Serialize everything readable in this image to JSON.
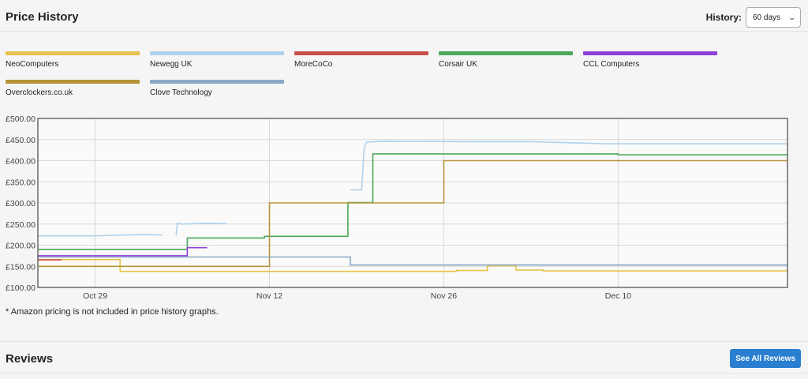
{
  "header": {
    "title": "Price History",
    "history_label": "History:",
    "history_selected": "60 days"
  },
  "note": "* Amazon pricing is not included in price history graphs.",
  "reviews": {
    "title": "Reviews",
    "button_label": "See All Reviews"
  },
  "colors": {
    "button": "#2a7fd1"
  },
  "chart_data": {
    "type": "line",
    "xlabel": "",
    "ylabel": "",
    "x_tick_labels": [
      {
        "label": "Oct 29",
        "day": 0
      },
      {
        "label": "Nov 12",
        "day": 14
      },
      {
        "label": "Nov 26",
        "day": 28
      },
      {
        "label": "Dec 10",
        "day": 42
      }
    ],
    "x_note": "x values are days relative to Oct 29",
    "xlim": [
      -4.6,
      55.6
    ],
    "y_tick_labels": [
      "£100.00",
      "£150.00",
      "£200.00",
      "£250.00",
      "£300.00",
      "£350.00",
      "£400.00",
      "£450.00",
      "£500.00"
    ],
    "ylim": [
      100,
      500
    ],
    "grid": true,
    "legend_position": "top",
    "series": [
      {
        "name": "NeoComputers",
        "color": "#e8c14a",
        "step": true,
        "points": [
          [
            -4.6,
            166
          ],
          [
            2,
            166
          ],
          [
            2,
            138
          ],
          [
            29,
            138
          ],
          [
            29,
            140
          ],
          [
            31.5,
            140
          ],
          [
            31.5,
            151
          ],
          [
            33.8,
            151
          ],
          [
            33.8,
            141
          ],
          [
            36,
            141
          ],
          [
            36,
            139
          ],
          [
            55.6,
            139
          ]
        ]
      },
      {
        "name": "Newegg UK",
        "color": "#aed2ee",
        "step": false,
        "points": [
          [
            -4.6,
            222
          ],
          [
            0,
            222
          ],
          [
            2,
            224
          ],
          [
            4,
            225
          ],
          [
            5.4,
            224
          ],
          [
            5.4,
            null
          ],
          [
            6.5,
            223
          ],
          [
            6.6,
            252
          ],
          [
            7,
            250
          ],
          [
            9,
            252
          ],
          [
            10.6,
            251
          ],
          [
            10.6,
            null
          ],
          [
            20.5,
            331
          ],
          [
            21.4,
            331
          ],
          [
            21.6,
            430
          ],
          [
            21.8,
            444
          ],
          [
            23,
            446
          ],
          [
            30,
            445
          ],
          [
            35,
            445
          ],
          [
            41,
            440
          ],
          [
            55.6,
            440
          ]
        ]
      },
      {
        "name": "MoreCoCo",
        "color": "#c9504a",
        "step": true,
        "points": [
          [
            -4.6,
            165
          ],
          [
            -2.7,
            165
          ]
        ]
      },
      {
        "name": "Corsair UK",
        "color": "#4aa85a",
        "step": true,
        "points": [
          [
            -4.6,
            190
          ],
          [
            7.4,
            190
          ],
          [
            7.4,
            217
          ],
          [
            11.5,
            217
          ],
          [
            11.5,
            217
          ],
          [
            13.6,
            217
          ],
          [
            13.6,
            221
          ],
          [
            20.3,
            221
          ],
          [
            20.3,
            301
          ],
          [
            22.3,
            301
          ],
          [
            22.3,
            416
          ],
          [
            42,
            416
          ],
          [
            42,
            414
          ],
          [
            55.6,
            414
          ]
        ]
      },
      {
        "name": "CCL Computers",
        "color": "#8e3fd9",
        "step": true,
        "points": [
          [
            -4.6,
            175
          ],
          [
            7.4,
            175
          ],
          [
            7.4,
            194
          ],
          [
            9,
            194
          ]
        ]
      },
      {
        "name": "Overclockers.co.uk",
        "color": "#b5943a",
        "step": true,
        "points": [
          [
            -4.6,
            150
          ],
          [
            14,
            150
          ],
          [
            14,
            300
          ],
          [
            28,
            300
          ],
          [
            28,
            400
          ],
          [
            55.6,
            400
          ]
        ]
      },
      {
        "name": "Clove Technology",
        "color": "#8aa8c6",
        "step": true,
        "points": [
          [
            -4.6,
            172
          ],
          [
            20.5,
            172
          ],
          [
            20.5,
            153
          ],
          [
            55.6,
            153
          ]
        ]
      }
    ]
  }
}
